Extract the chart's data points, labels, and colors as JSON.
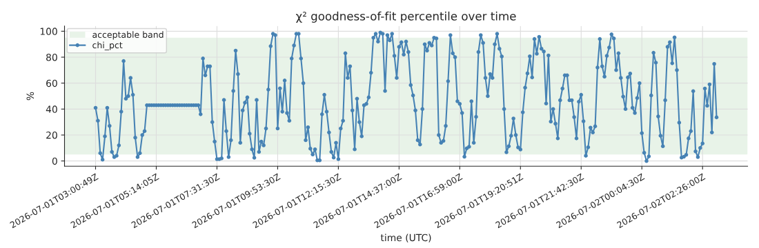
{
  "chart_data": {
    "type": "line",
    "title": "χ² goodness-of-fit percentile over time",
    "xlabel": "time (UTC)",
    "ylabel": "%",
    "categories": [
      "2026-07-01T03:00:49Z",
      null,
      null,
      null,
      null,
      null,
      null,
      null,
      null,
      null,
      null,
      null,
      null,
      null,
      null,
      null,
      null,
      null,
      null,
      null,
      null,
      null,
      null,
      null,
      null,
      null,
      "2026-07-01T05:14:05Z",
      null,
      null,
      null,
      null,
      null,
      null,
      null,
      null,
      null,
      null,
      null,
      null,
      null,
      null,
      null,
      null,
      null,
      null,
      null,
      null,
      null,
      null,
      null,
      null,
      null,
      "2026-07-01T07:31:30Z",
      null,
      null,
      null,
      null,
      null,
      null,
      null,
      null,
      null,
      null,
      null,
      null,
      null,
      null,
      null,
      null,
      null,
      null,
      null,
      null,
      null,
      null,
      null,
      null,
      null,
      "2026-07-01T09:53:30Z",
      null,
      null,
      null,
      null,
      null,
      null,
      null,
      null,
      null,
      null,
      null,
      null,
      null,
      null,
      null,
      null,
      null,
      null,
      null,
      null,
      null,
      null,
      null,
      null,
      null,
      "2026-07-01T12:15:30Z",
      null,
      null,
      null,
      null,
      null,
      null,
      null,
      null,
      null,
      null,
      null,
      null,
      null,
      null,
      null,
      null,
      null,
      null,
      null,
      null,
      null,
      null,
      null,
      null,
      null,
      "2026-07-01T14:37:00Z",
      null,
      null,
      null,
      null,
      null,
      null,
      null,
      null,
      null,
      null,
      null,
      null,
      null,
      null,
      null,
      null,
      null,
      null,
      null,
      null,
      null,
      null,
      null,
      null,
      null,
      "2026-07-01T16:59:00Z",
      null,
      null,
      null,
      null,
      null,
      null,
      null,
      null,
      null,
      null,
      null,
      null,
      null,
      null,
      null,
      null,
      null,
      null,
      null,
      null,
      null,
      null,
      null,
      null,
      null,
      "2026-07-01T19:20:51Z",
      null,
      null,
      null,
      null,
      null,
      null,
      null,
      null,
      null,
      null,
      null,
      null,
      null,
      null,
      null,
      null,
      null,
      null,
      null,
      null,
      null,
      null,
      null,
      null,
      null,
      "2026-07-01T21:42:30Z",
      null,
      null,
      null,
      null,
      null,
      null,
      null,
      null,
      null,
      null,
      null,
      null,
      null,
      null,
      null,
      null,
      null,
      null,
      null,
      null,
      null,
      null,
      null,
      null,
      null,
      "2026-07-02T00:04:30Z",
      null,
      null,
      null,
      null,
      null,
      null,
      null,
      null,
      null,
      null,
      null,
      null,
      null,
      null,
      null,
      null,
      null,
      null,
      null,
      null,
      null,
      null,
      null,
      null,
      null,
      "2026-07-02T02:26:00Z",
      null,
      null,
      null,
      null,
      null,
      null
    ],
    "series": [
      {
        "name": "chi_pct",
        "color": "#4682b4",
        "values": [
          41,
          31,
          6,
          1,
          19,
          41,
          27,
          7,
          3,
          4,
          12,
          38,
          77,
          48,
          50,
          64,
          51,
          18,
          3,
          6,
          20,
          23,
          43,
          43,
          43,
          43,
          43,
          43,
          43,
          43,
          43,
          43,
          43,
          43,
          43,
          43,
          43,
          43,
          43,
          43,
          43,
          43,
          43,
          43,
          43,
          36,
          79,
          66,
          73,
          73,
          30,
          15,
          1.4,
          1.4,
          2,
          47,
          23,
          3,
          16,
          54,
          85,
          67,
          14,
          39,
          45,
          49,
          21,
          9,
          2.5,
          47,
          7,
          15,
          12,
          25,
          55,
          88.5,
          98,
          97,
          25,
          56,
          38,
          62,
          37,
          31,
          79,
          89,
          98,
          98,
          79,
          60,
          16,
          26,
          9.5,
          5,
          9,
          0.5,
          0.5,
          36,
          51,
          38,
          22,
          7,
          2.6,
          14,
          1.4,
          25,
          31,
          83,
          64,
          73,
          39,
          9,
          48,
          30,
          19,
          43,
          44,
          49,
          68,
          95,
          98,
          92,
          99,
          98,
          54,
          97,
          93,
          98,
          81,
          64,
          88,
          91.5,
          82,
          92,
          84,
          58.5,
          50.5,
          39,
          16,
          12.7,
          40,
          90,
          85,
          91,
          89,
          95,
          94.5,
          20,
          14,
          15.5,
          27,
          61.5,
          97,
          83,
          80,
          46,
          44,
          37,
          3.3,
          9.7,
          11,
          46,
          14,
          34,
          84,
          97,
          91,
          64,
          50,
          67,
          64,
          90,
          98,
          86.5,
          80.5,
          40,
          6.7,
          11.4,
          19.5,
          32.7,
          20,
          10.4,
          8.8,
          37.5,
          56.5,
          67.5,
          80.7,
          64.4,
          94,
          82.7,
          95.7,
          86.5,
          84.4,
          44.3,
          81.3,
          30.4,
          40,
          28.8,
          17.4,
          46.8,
          55.8,
          66,
          66,
          46.8,
          46.8,
          33.8,
          17.4,
          45.7,
          51,
          30.6,
          4,
          10.6,
          25.7,
          22,
          26.7,
          72,
          94,
          73,
          65,
          81,
          87.4,
          97.6,
          94.5,
          70,
          83,
          64,
          49.6,
          40,
          64.4,
          67.4,
          41,
          37,
          48.5,
          60,
          21.5,
          6.3,
          0,
          3.5,
          50.5,
          83.4,
          75.8,
          34.3,
          19.5,
          11.4,
          46.8,
          88,
          91.6,
          75.3,
          95.3,
          70,
          29.6,
          2.6,
          3.3,
          4.7,
          17.4,
          23,
          53.8,
          7.4,
          3,
          10,
          13.5,
          55.8,
          42.6,
          59,
          22,
          74.8,
          33.6
        ]
      }
    ],
    "bands": [
      {
        "axis": "y",
        "from": 5,
        "to": 95,
        "label": "acceptable band",
        "color": "#e8f3e8"
      }
    ],
    "ylim": [
      -4,
      104
    ],
    "yticks": [
      0,
      20,
      40,
      60,
      80,
      100
    ],
    "grid": true,
    "legend": "top left",
    "marker": "circle",
    "line_style": "solid"
  }
}
